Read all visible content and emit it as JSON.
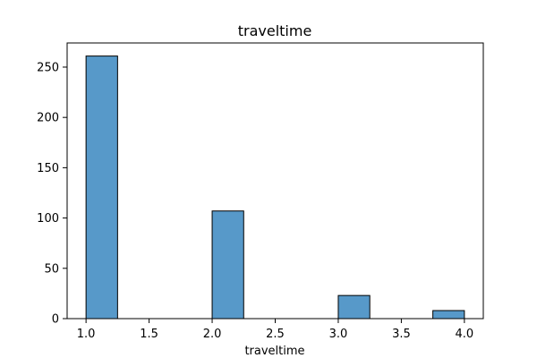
{
  "chart_data": {
    "type": "bar",
    "title": "traveltime",
    "xlabel": "traveltime",
    "ylabel": "",
    "bin_edges": [
      1.0,
      1.25,
      1.5,
      1.75,
      2.0,
      2.25,
      2.5,
      2.75,
      3.0,
      3.25,
      3.5,
      3.75,
      4.0
    ],
    "values": [
      261,
      0,
      0,
      0,
      107,
      0,
      0,
      0,
      23,
      0,
      0,
      8
    ],
    "xlim": [
      0.85,
      4.15
    ],
    "ylim": [
      0,
      274
    ],
    "xticks": [
      1.0,
      1.5,
      2.0,
      2.5,
      3.0,
      3.5,
      4.0
    ],
    "xtick_labels": [
      "1.0",
      "1.5",
      "2.0",
      "2.5",
      "3.0",
      "3.5",
      "4.0"
    ],
    "yticks": [
      0,
      50,
      100,
      150,
      200,
      250
    ],
    "ytick_labels": [
      "0",
      "50",
      "100",
      "150",
      "200",
      "250"
    ],
    "grid": false,
    "bar_color": "#5799c9",
    "edge_color": "#000000"
  }
}
